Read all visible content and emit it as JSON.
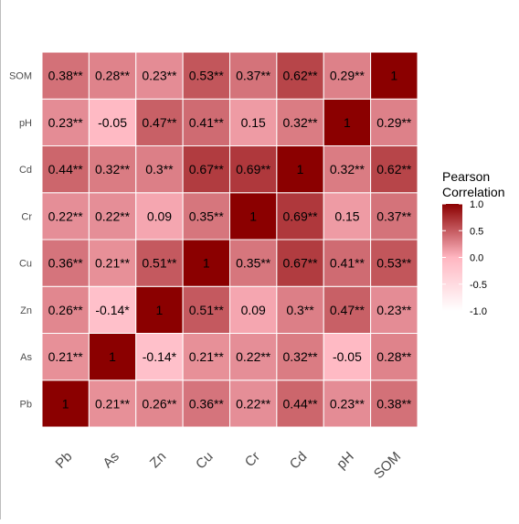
{
  "chart_data": {
    "type": "heatmap",
    "variables": [
      "Pb",
      "As",
      "Zn",
      "Cu",
      "Cr",
      "Cd",
      "pH",
      "SOM"
    ],
    "rows_bottom_to_top": [
      "Pb",
      "As",
      "Zn",
      "Cu",
      "Cr",
      "Cd",
      "pH",
      "SOM"
    ],
    "values": [
      [
        1,
        0.21,
        0.26,
        0.36,
        0.22,
        0.44,
        0.23,
        0.38
      ],
      [
        0.21,
        1,
        -0.14,
        0.21,
        0.22,
        0.32,
        -0.05,
        0.28
      ],
      [
        0.26,
        -0.14,
        1,
        0.51,
        0.09,
        0.3,
        0.47,
        0.23
      ],
      [
        0.36,
        0.21,
        0.51,
        1,
        0.35,
        0.67,
        0.41,
        0.53
      ],
      [
        0.22,
        0.22,
        0.09,
        0.35,
        1,
        0.69,
        0.15,
        0.37
      ],
      [
        0.44,
        0.32,
        0.3,
        0.67,
        0.69,
        1,
        0.32,
        0.62
      ],
      [
        0.23,
        -0.05,
        0.47,
        0.41,
        0.15,
        0.32,
        1,
        0.29
      ],
      [
        0.38,
        0.28,
        0.23,
        0.53,
        0.37,
        0.62,
        0.29,
        1
      ]
    ],
    "labels": [
      [
        "1",
        "0.21**",
        "0.26**",
        "0.36**",
        "0.22**",
        "0.44**",
        "0.23**",
        "0.38**"
      ],
      [
        "0.21**",
        "1",
        "-0.14*",
        "0.21**",
        "0.22**",
        "0.32**",
        "-0.05",
        "0.28**"
      ],
      [
        "0.26**",
        "-0.14*",
        "1",
        "0.51**",
        "0.09",
        "0.3**",
        "0.47**",
        "0.23**"
      ],
      [
        "0.36**",
        "0.21**",
        "0.51**",
        "1",
        "0.35**",
        "0.67**",
        "0.41**",
        "0.53**"
      ],
      [
        "0.22**",
        "0.22**",
        "0.09",
        "0.35**",
        "1",
        "0.69**",
        "0.15",
        "0.37**"
      ],
      [
        "0.44**",
        "0.32**",
        "0.3**",
        "0.67**",
        "0.69**",
        "1",
        "0.32**",
        "0.62**"
      ],
      [
        "0.23**",
        "-0.05",
        "0.47**",
        "0.41**",
        "0.15",
        "0.32**",
        "1",
        "0.29**"
      ],
      [
        "0.38**",
        "0.28**",
        "0.23**",
        "0.53**",
        "0.37**",
        "0.62**",
        "0.29**",
        "1"
      ]
    ],
    "legend": {
      "title_line1": "Pearson",
      "title_line2": "Correlation",
      "range": [
        -1,
        1
      ],
      "ticks": [
        1.0,
        0.5,
        0.0,
        -0.5,
        -1.0
      ],
      "tick_labels": [
        "1.0",
        "0.5",
        "0.0",
        "-0.5",
        "-1.0"
      ],
      "placement": "right"
    },
    "colors": {
      "low": "#ffffff",
      "mid": "#ffb6c1",
      "high": "#8b0000",
      "grid_line": "#ffffff",
      "tick_text": "#4d4d4d",
      "cell_text": "#000000"
    }
  }
}
